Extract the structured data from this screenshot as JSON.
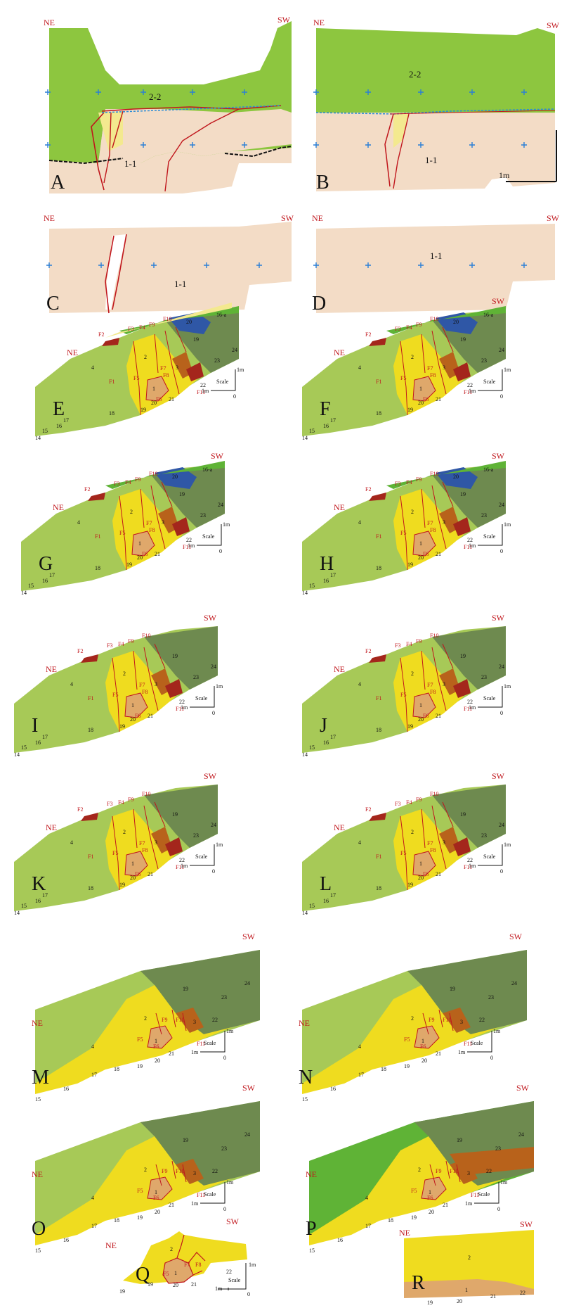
{
  "panels": [
    {
      "label": "A",
      "ne": "NE",
      "sw": "SW",
      "tags": [
        "2-2",
        "1-1"
      ]
    },
    {
      "label": "B",
      "ne": "",
      "sw": "SW",
      "tags": [
        "2-2",
        "1-1"
      ],
      "scale": "1m"
    },
    {
      "label": "C",
      "ne": "NE",
      "sw": "SW",
      "tags": [
        "1-1"
      ]
    },
    {
      "label": "D",
      "ne": "NE",
      "sw": "SW",
      "tags": [
        "1-1"
      ]
    },
    {
      "label": "E",
      "ne": "NE",
      "sw": "",
      "scale": "Scale"
    },
    {
      "label": "F",
      "ne": "NE",
      "sw": "SW",
      "scale": "Scale"
    },
    {
      "label": "G",
      "ne": "NE",
      "sw": "SW",
      "scale": "Scale"
    },
    {
      "label": "H",
      "ne": "NE",
      "sw": "SW",
      "scale": "Scale"
    },
    {
      "label": "I",
      "ne": "NE",
      "sw": "SW",
      "scale": "Scale"
    },
    {
      "label": "J",
      "ne": "NE",
      "sw": "SW",
      "scale": "Scale"
    },
    {
      "label": "K",
      "ne": "NE",
      "sw": "SW",
      "scale": "Scale"
    },
    {
      "label": "L",
      "ne": "NE",
      "sw": "SW",
      "scale": "Scale"
    },
    {
      "label": "M",
      "ne": "NE",
      "sw": "SW",
      "scale": "Scale"
    },
    {
      "label": "N",
      "ne": "NE",
      "sw": "SW",
      "scale": "Scale"
    },
    {
      "label": "O",
      "ne": "NE",
      "sw": "SW",
      "scale": "Scale"
    },
    {
      "label": "P",
      "ne": "NE",
      "sw": "SW",
      "scale": "Scale"
    },
    {
      "label": "Q",
      "ne": "NE",
      "sw": "SW",
      "scale": "Scale"
    },
    {
      "label": "R",
      "ne": "NE",
      "sw": "SW"
    }
  ],
  "scale_labels": {
    "scale": "Scale",
    "one_m": "1m",
    "zero": "0"
  },
  "layer_numbers": [
    "1",
    "2",
    "3",
    "4",
    "14",
    "15",
    "16",
    "16-a",
    "17",
    "18",
    "19",
    "20",
    "21",
    "22",
    "23",
    "24"
  ],
  "fault_labels": [
    "F1",
    "F2",
    "F3",
    "F4",
    "F5",
    "F6",
    "F7",
    "F8",
    "F9",
    "F10",
    "F11"
  ],
  "colors": {
    "light_green": "#8dc63f",
    "olive_green": "#a7c957",
    "dark_green": "#6e8a4f",
    "bright_green": "#5fb336",
    "blue": "#2f57a6",
    "yellow": "#efdc1f",
    "pale_yellow": "#f3e98f",
    "tan": "#dfa86b",
    "peach": "#f3dcc6",
    "brown": "#b8621b",
    "dark_red": "#a4261c",
    "fault_red": "#c0161c"
  }
}
